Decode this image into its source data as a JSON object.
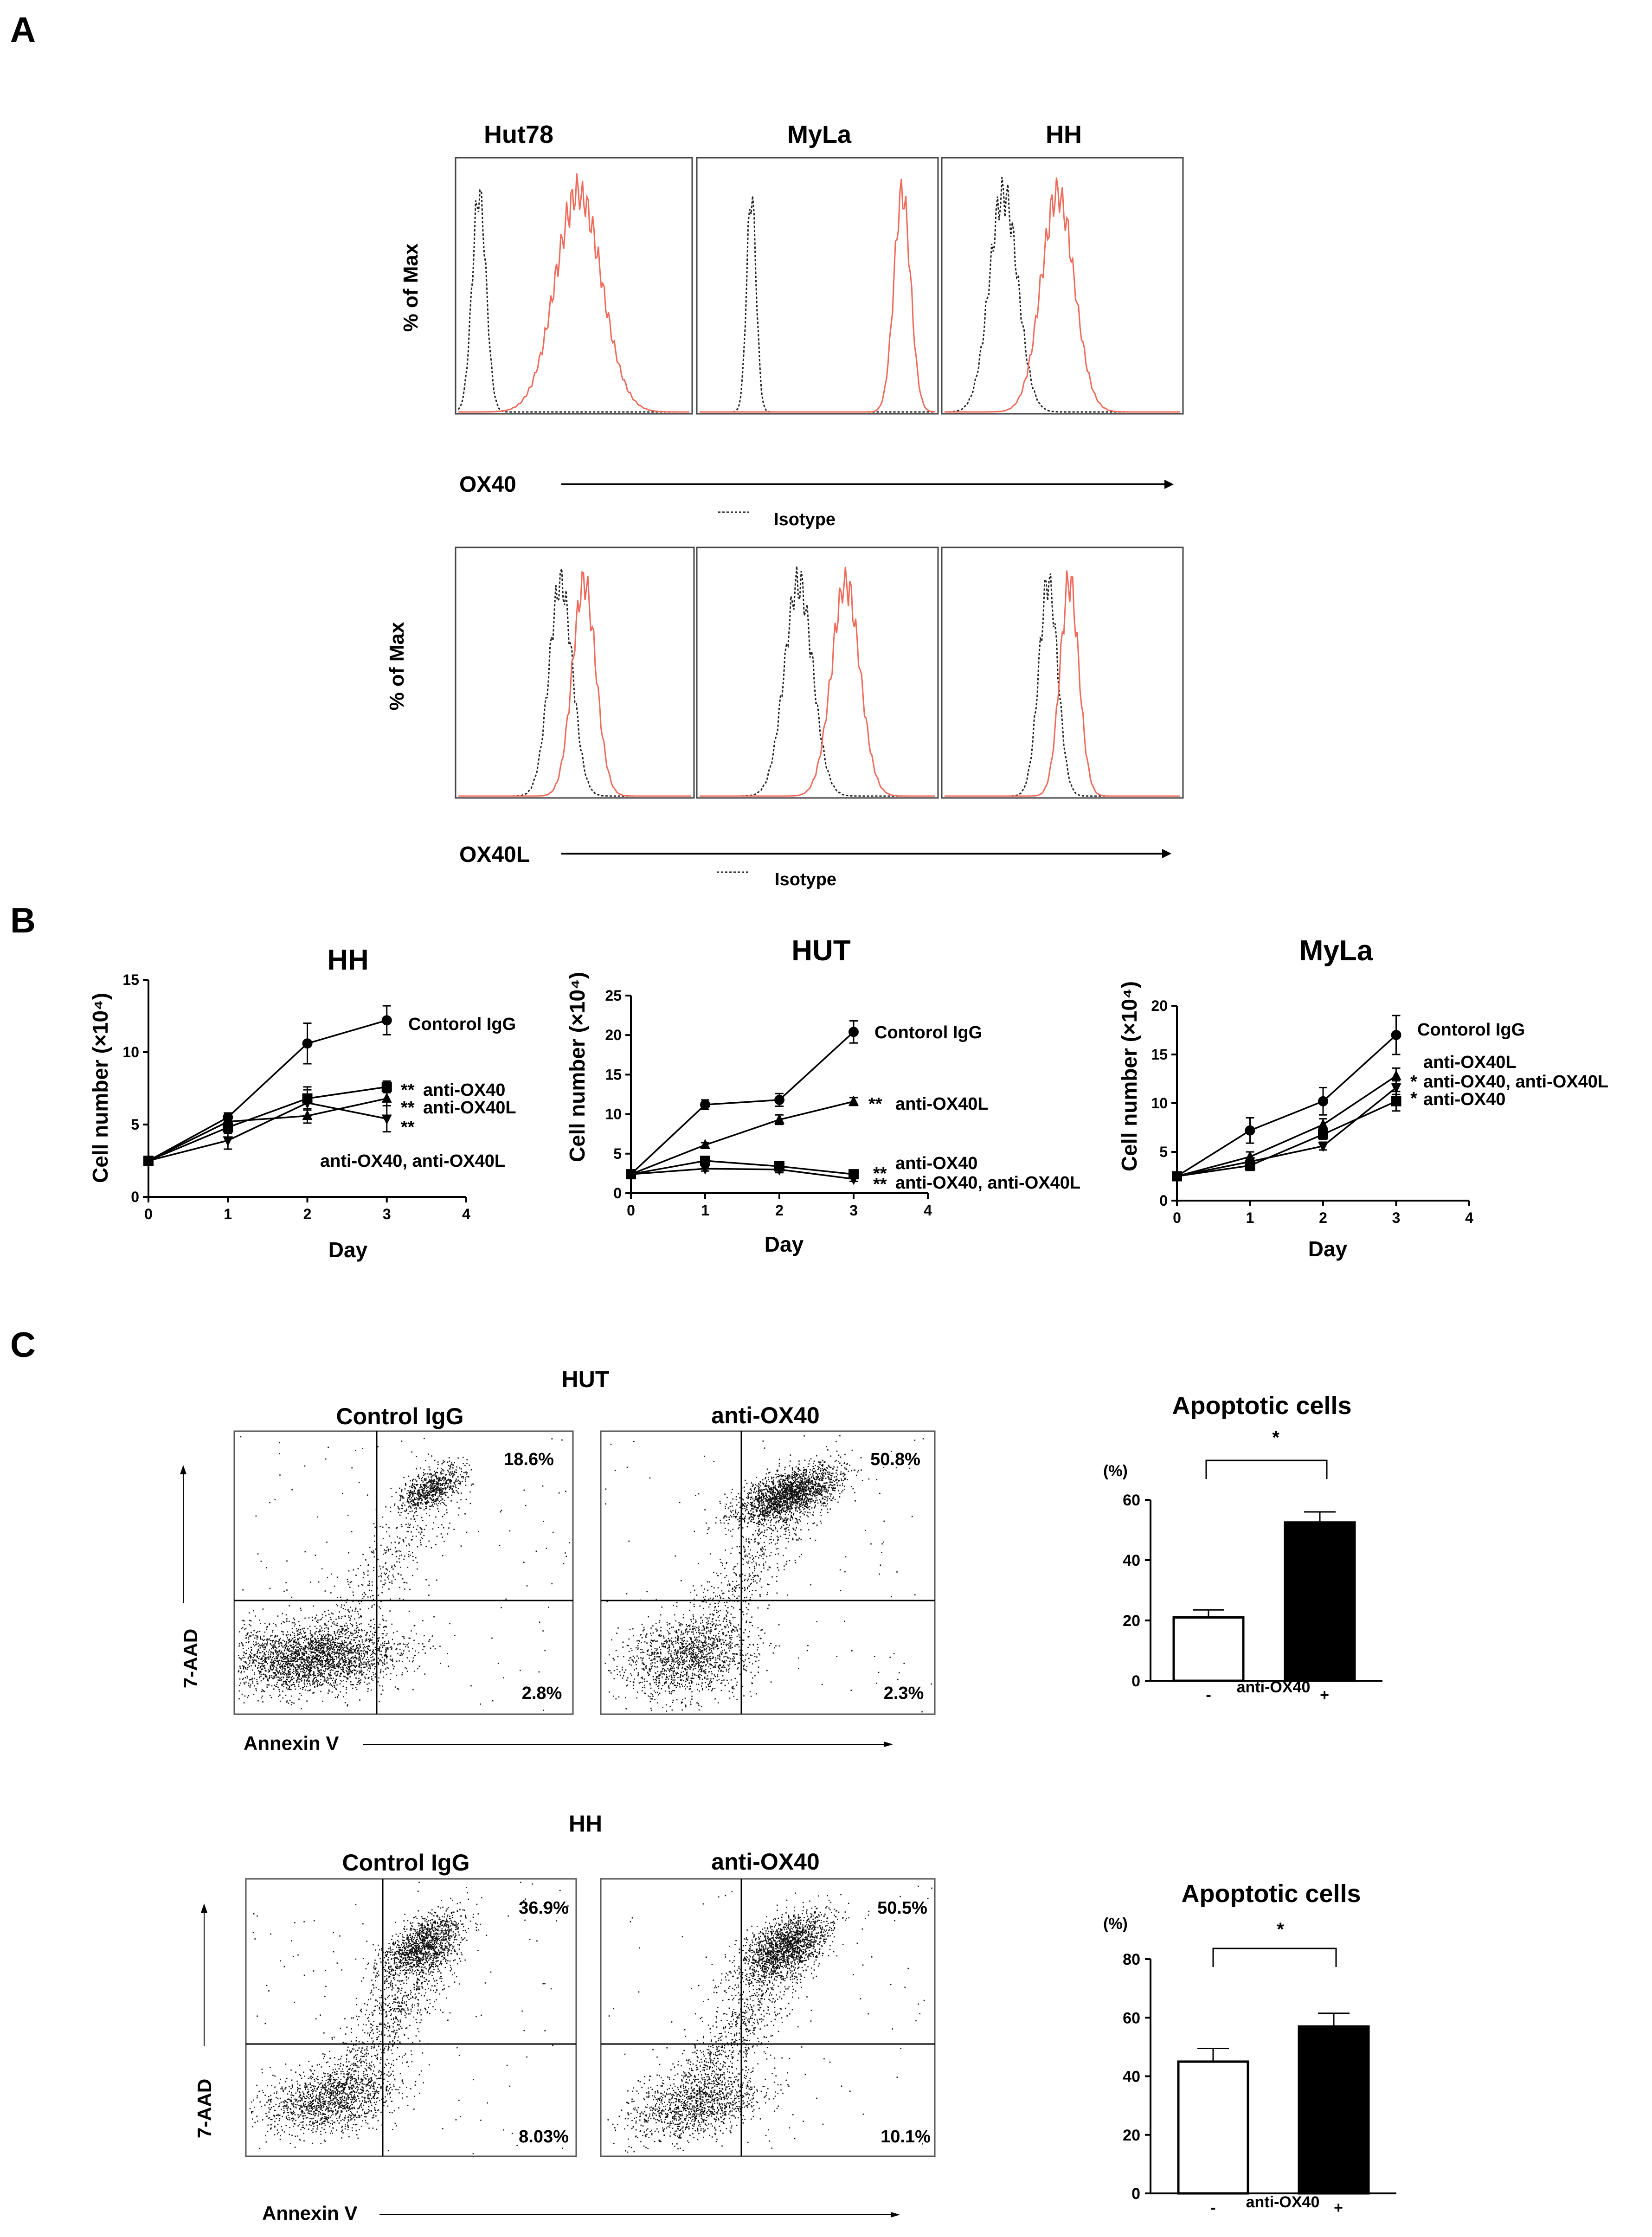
{
  "panels": {
    "a": "A",
    "b": "B",
    "c": "C"
  },
  "panel_a": {
    "cell_lines": [
      "Hut78",
      "MyLa",
      "HH"
    ],
    "y_label": "% of Max",
    "isotype_label": "Isotype",
    "rows": [
      {
        "marker": "OX40",
        "histograms": [
          {
            "iso_peak": 0.09,
            "iso_width": 0.03,
            "exp_peak": 0.52,
            "exp_width": 0.1
          },
          {
            "iso_peak": 0.22,
            "iso_width": 0.02,
            "exp_peak": 0.86,
            "exp_width": 0.035
          },
          {
            "iso_peak": 0.25,
            "iso_width": 0.06,
            "exp_peak": 0.48,
            "exp_width": 0.07
          }
        ]
      },
      {
        "marker": "OX40L",
        "histograms": [
          {
            "iso_peak": 0.44,
            "iso_width": 0.05,
            "exp_peak": 0.54,
            "exp_width": 0.05
          },
          {
            "iso_peak": 0.42,
            "iso_width": 0.06,
            "exp_peak": 0.62,
            "exp_width": 0.06
          },
          {
            "iso_peak": 0.44,
            "iso_width": 0.04,
            "exp_peak": 0.53,
            "exp_width": 0.04
          }
        ]
      }
    ]
  },
  "chart_data": [
    {
      "type": "line",
      "title": "HH",
      "xlabel": "Day",
      "ylabel": "Cell number (×10⁴)",
      "xlim": [
        0,
        4
      ],
      "ylim": [
        0,
        15
      ],
      "xticks": [
        0,
        1,
        2,
        3,
        4
      ],
      "yticks": [
        0,
        5,
        10,
        15
      ],
      "x": [
        0,
        1,
        2,
        3
      ],
      "series": [
        {
          "name": "Contorol IgG",
          "marker": "circle",
          "values": [
            2.5,
            5.5,
            10.6,
            12.2
          ],
          "errors": [
            0,
            0.3,
            1.4,
            1.0
          ]
        },
        {
          "name": "anti-OX40",
          "marker": "square",
          "values": [
            2.5,
            4.8,
            6.8,
            7.6
          ],
          "errors": [
            0,
            0.4,
            0.8,
            0.4
          ]
        },
        {
          "name": "anti-OX40L",
          "marker": "triangle",
          "values": [
            2.5,
            5.2,
            5.6,
            6.8
          ],
          "errors": [
            0,
            0.4,
            0.5,
            0.5
          ]
        },
        {
          "name": "anti-OX40, anti-OX40L",
          "marker": "tri-down",
          "values": [
            2.5,
            3.9,
            6.5,
            5.4
          ],
          "errors": [
            0,
            0.6,
            0.9,
            0.9
          ]
        }
      ],
      "annotations": [
        "Contorol IgG",
        "**",
        "anti-OX40",
        "**",
        "anti-OX40L",
        "**",
        "anti-OX40, anti-OX40L"
      ]
    },
    {
      "type": "line",
      "title": "HUT",
      "xlabel": "Day",
      "ylabel": "Cell number (×10⁴)",
      "xlim": [
        0,
        4
      ],
      "ylim": [
        0,
        25
      ],
      "xticks": [
        0,
        1,
        2,
        3,
        4
      ],
      "yticks": [
        0,
        5,
        10,
        15,
        20,
        25
      ],
      "x": [
        0,
        1,
        2,
        3
      ],
      "series": [
        {
          "name": "Contorol IgG",
          "marker": "circle",
          "values": [
            2.4,
            11.2,
            11.8,
            20.4
          ],
          "errors": [
            0,
            0.6,
            0.8,
            1.4
          ]
        },
        {
          "name": "anti-OX40L",
          "marker": "triangle",
          "values": [
            2.4,
            6.1,
            9.3,
            11.6
          ],
          "errors": [
            0,
            0.3,
            0.6,
            0.5
          ]
        },
        {
          "name": "anti-OX40",
          "marker": "square",
          "values": [
            2.4,
            4.1,
            3.4,
            2.4
          ],
          "errors": [
            0,
            0.3,
            0.6,
            0.3
          ]
        },
        {
          "name": "anti-OX40, anti-OX40L",
          "marker": "tri-down",
          "values": [
            2.4,
            3.1,
            3.0,
            1.8
          ],
          "errors": [
            0,
            0.3,
            0.4,
            0.3
          ]
        }
      ],
      "annotations": [
        "Contorol IgG",
        "**",
        "anti-OX40L",
        "anti-OX40",
        "**",
        "**",
        "anti-OX40, anti-OX40L"
      ]
    },
    {
      "type": "line",
      "title": "MyLa",
      "xlabel": "Day",
      "ylabel": "Cell number (×10⁴)",
      "xlim": [
        0,
        4
      ],
      "ylim": [
        0,
        20
      ],
      "xticks": [
        0,
        1,
        2,
        3,
        4
      ],
      "yticks": [
        0,
        5,
        10,
        15,
        20
      ],
      "x": [
        0,
        1,
        2,
        3
      ],
      "series": [
        {
          "name": "Contorol IgG",
          "marker": "circle",
          "values": [
            2.5,
            7.2,
            10.2,
            17.0
          ],
          "errors": [
            0,
            1.3,
            1.4,
            2.0
          ]
        },
        {
          "name": "anti-OX40L",
          "marker": "triangle",
          "values": [
            2.5,
            4.5,
            7.8,
            12.8
          ],
          "errors": [
            0,
            0.5,
            0.6,
            0.8
          ]
        },
        {
          "name": "anti-OX40, anti-OX40L",
          "marker": "tri-down",
          "values": [
            2.5,
            4.0,
            5.6,
            11.6
          ],
          "errors": [
            0,
            0.4,
            0.4,
            0.7
          ]
        },
        {
          "name": "anti-OX40",
          "marker": "square",
          "values": [
            2.5,
            3.6,
            6.8,
            10.2
          ],
          "errors": [
            0,
            0.5,
            0.5,
            1.0
          ]
        }
      ],
      "annotations": [
        "Contorol IgG",
        "anti-OX40L",
        "*",
        "anti-OX40, anti-OX40L",
        "*",
        "anti-OX40"
      ]
    },
    {
      "type": "bar",
      "title": "Apoptotic cells",
      "ylabel": "(%)",
      "xlabel": "anti-OX40",
      "categories": [
        "-",
        "+"
      ],
      "values": [
        21,
        52.5
      ],
      "errors": [
        2.5,
        3.5
      ],
      "ylim": [
        0,
        60
      ],
      "yticks": [
        0,
        20,
        40,
        60
      ],
      "significance": "*"
    },
    {
      "type": "bar",
      "title": "Apoptotic cells",
      "ylabel": "(%)",
      "xlabel": "anti-OX40",
      "categories": [
        "-",
        "+"
      ],
      "values": [
        45,
        57
      ],
      "errors": [
        4.5,
        4.5
      ],
      "ylim": [
        0,
        80
      ],
      "yticks": [
        0,
        20,
        40,
        60,
        80
      ],
      "significance": "*"
    }
  ],
  "panel_c": {
    "x_axis": "Annexin V",
    "y_axis": "7-AAD",
    "rows": [
      {
        "title": "HUT",
        "plots": [
          {
            "condition": "Control IgG",
            "upper_right": "18.6%",
            "lower_right": "2.8%"
          },
          {
            "condition": "anti-OX40",
            "upper_right": "50.8%",
            "lower_right": "2.3%"
          }
        ]
      },
      {
        "title": "HH",
        "plots": [
          {
            "condition": "Control IgG",
            "upper_right": "36.9%",
            "lower_right": "8.03%"
          },
          {
            "condition": "anti-OX40",
            "upper_right": "50.5%",
            "lower_right": "10.1%"
          }
        ]
      }
    ]
  }
}
